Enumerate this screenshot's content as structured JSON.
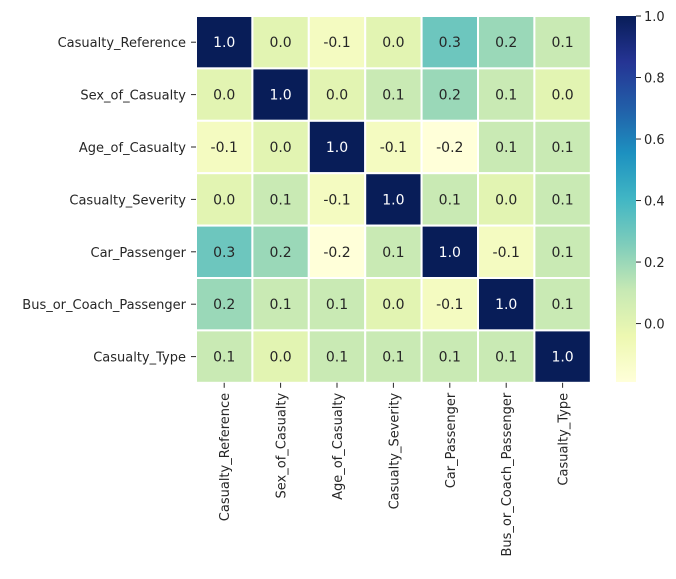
{
  "chart_data": {
    "type": "heatmap",
    "row_labels": [
      "Casualty_Reference",
      "Sex_of_Casualty",
      "Age_of_Casualty",
      "Casualty_Severity",
      "Car_Passenger",
      "Bus_or_Coach_Passenger",
      "Casualty_Type"
    ],
    "col_labels": [
      "Casualty_Reference",
      "Sex_of_Casualty",
      "Age_of_Casualty",
      "Casualty_Severity",
      "Car_Passenger",
      "Bus_or_Coach_Passenger",
      "Casualty_Type"
    ],
    "values": [
      [
        1.0,
        0.0,
        -0.1,
        0.0,
        0.3,
        0.2,
        0.1
      ],
      [
        0.0,
        1.0,
        0.0,
        0.1,
        0.2,
        0.1,
        0.0
      ],
      [
        -0.1,
        0.0,
        1.0,
        -0.1,
        -0.2,
        0.1,
        0.1
      ],
      [
        0.0,
        0.1,
        -0.1,
        1.0,
        0.1,
        0.0,
        0.1
      ],
      [
        0.3,
        0.2,
        -0.2,
        0.1,
        1.0,
        -0.1,
        0.1
      ],
      [
        0.2,
        0.1,
        0.1,
        0.0,
        -0.1,
        1.0,
        0.1
      ],
      [
        0.1,
        0.0,
        0.1,
        0.1,
        0.1,
        0.1,
        1.0
      ]
    ],
    "colormap": "YlGnBu",
    "colorbar": {
      "vmin": -0.19,
      "vmax": 1.0,
      "ticks": [
        0.0,
        0.2,
        0.4,
        0.6,
        0.8,
        1.0
      ],
      "tick_labels": [
        "0.0",
        "0.2",
        "0.4",
        "0.6",
        "0.8",
        "1.0"
      ]
    },
    "cell_border_color": "#ffffff",
    "annotations": true
  }
}
